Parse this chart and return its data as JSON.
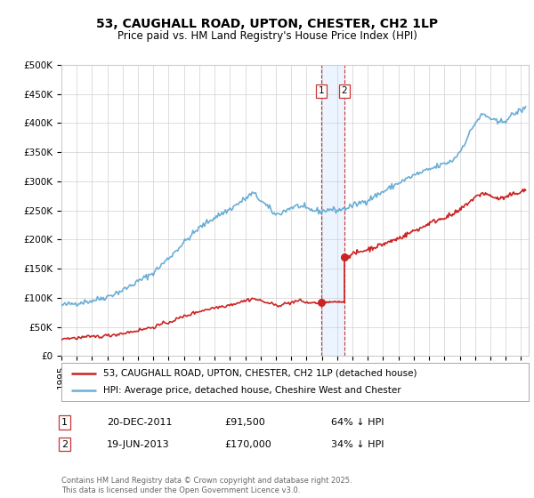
{
  "title": "53, CAUGHALL ROAD, UPTON, CHESTER, CH2 1LP",
  "subtitle": "Price paid vs. HM Land Registry's House Price Index (HPI)",
  "ylim": [
    0,
    500000
  ],
  "yticks": [
    0,
    50000,
    100000,
    150000,
    200000,
    250000,
    300000,
    350000,
    400000,
    450000,
    500000
  ],
  "ytick_labels": [
    "£0",
    "£50K",
    "£100K",
    "£150K",
    "£200K",
    "£250K",
    "£300K",
    "£350K",
    "£400K",
    "£450K",
    "£500K"
  ],
  "hpi_color": "#6aaed6",
  "price_color": "#cc2222",
  "sale1_date": 2011.97,
  "sale1_price": 91500,
  "sale2_date": 2013.47,
  "sale2_price": 170000,
  "vline_color": "#cc3333",
  "shade_color": "#ddeeff",
  "legend_house": "53, CAUGHALL ROAD, UPTON, CHESTER, CH2 1LP (detached house)",
  "legend_hpi": "HPI: Average price, detached house, Cheshire West and Chester",
  "annotation1_label": "1",
  "annotation1_date": "20-DEC-2011",
  "annotation1_price": "£91,500",
  "annotation1_hpi": "64% ↓ HPI",
  "annotation2_label": "2",
  "annotation2_date": "19-JUN-2013",
  "annotation2_price": "£170,000",
  "annotation2_hpi": "34% ↓ HPI",
  "footer": "Contains HM Land Registry data © Crown copyright and database right 2025.\nThis data is licensed under the Open Government Licence v3.0.",
  "background_color": "#ffffff",
  "grid_color": "#cccccc",
  "title_fontsize": 10,
  "subtitle_fontsize": 8.5,
  "tick_fontsize": 7.5,
  "legend_fontsize": 7.5,
  "ann_fontsize": 8,
  "footer_fontsize": 6
}
